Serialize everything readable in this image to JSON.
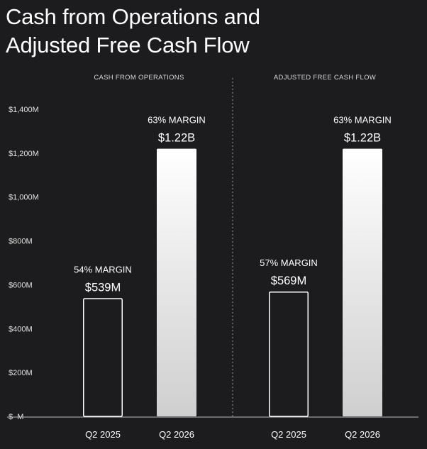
{
  "title_line1": "Cash from Operations and",
  "title_line2": "Adjusted Free Cash Flow",
  "colors": {
    "background": "#1c1c1e",
    "bar_outline": "#ffffff",
    "bar_gradient_top": "#ffffff",
    "bar_gradient_bottom": "#cfcfcf",
    "text": "#ffffff"
  },
  "chart_data": {
    "type": "bar",
    "unit": "$M",
    "ylim": [
      0,
      1400
    ],
    "yticks": [
      {
        "value": 0,
        "label": "$–M"
      },
      {
        "value": 200,
        "label": "$200M"
      },
      {
        "value": 400,
        "label": "$400M"
      },
      {
        "value": 600,
        "label": "$600M"
      },
      {
        "value": 800,
        "label": "$800M"
      },
      {
        "value": 1000,
        "label": "$1,000M"
      },
      {
        "value": 1200,
        "label": "$1,200M"
      },
      {
        "value": 1400,
        "label": "$1,400M"
      }
    ],
    "grid": false,
    "panels": [
      {
        "title": "CASH FROM OPERATIONS",
        "categories": [
          "Q2 2025",
          "Q2 2026"
        ],
        "values": [
          539,
          1220
        ],
        "amount_labels": [
          "$539M",
          "$1.22B"
        ],
        "margin_labels": [
          "54% MARGIN",
          "63% MARGIN"
        ],
        "styles": [
          "outline",
          "gradient"
        ]
      },
      {
        "title": "ADJUSTED FREE CASH FLOW",
        "categories": [
          "Q2 2025",
          "Q2 2026"
        ],
        "values": [
          569,
          1220
        ],
        "amount_labels": [
          "$569M",
          "$1.22B"
        ],
        "margin_labels": [
          "57% MARGIN",
          "63% MARGIN"
        ],
        "styles": [
          "outline",
          "gradient"
        ]
      }
    ]
  }
}
